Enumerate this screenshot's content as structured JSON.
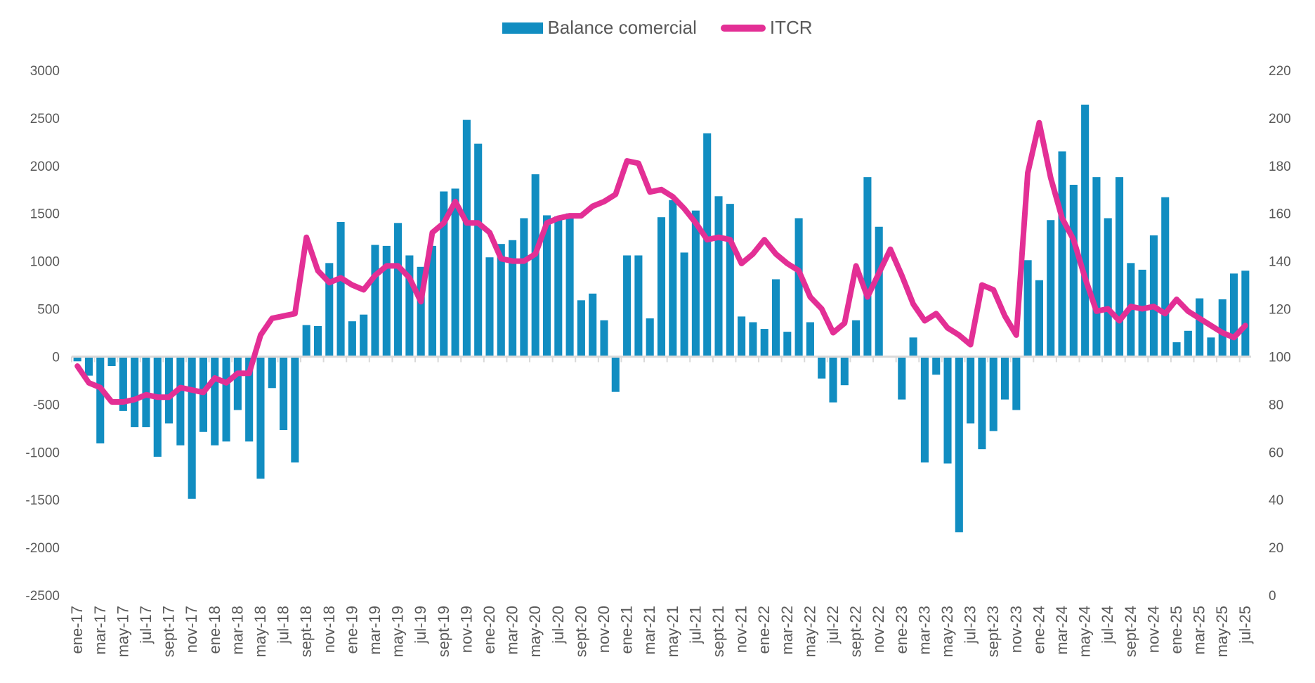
{
  "colors": {
    "bar": "#118DC1",
    "line": "#E32F95",
    "axis": "#D9D9D9",
    "text": "#595959"
  },
  "chart_data": {
    "type": "bar+line",
    "title": "",
    "legend_position": "top-center",
    "legend": [
      {
        "name": "Balance comercial",
        "kind": "bar"
      },
      {
        "name": "ITCR",
        "kind": "line"
      }
    ],
    "y_left": {
      "min": -2500,
      "max": 3000,
      "ticks": [
        3000,
        2500,
        2000,
        1500,
        1000,
        500,
        0,
        -500,
        -1000,
        -1500,
        -2000,
        -2500
      ]
    },
    "y_right": {
      "min": 0,
      "max": 220,
      "ticks": [
        220,
        200,
        180,
        160,
        140,
        120,
        100,
        80,
        60,
        40,
        20,
        0
      ]
    },
    "x_labels_every": 2,
    "categories": [
      "ene-17",
      "feb-17",
      "mar-17",
      "abr-17",
      "may-17",
      "jun-17",
      "jul-17",
      "ago-17",
      "sept-17",
      "oct-17",
      "nov-17",
      "dic-17",
      "ene-18",
      "feb-18",
      "mar-18",
      "abr-18",
      "may-18",
      "jun-18",
      "jul-18",
      "ago-18",
      "sept-18",
      "oct-18",
      "nov-18",
      "dic-18",
      "ene-19",
      "feb-19",
      "mar-19",
      "abr-19",
      "may-19",
      "jun-19",
      "jul-19",
      "ago-19",
      "sept-19",
      "oct-19",
      "nov-19",
      "dic-19",
      "ene-20",
      "feb-20",
      "mar-20",
      "abr-20",
      "may-20",
      "jun-20",
      "jul-20",
      "ago-20",
      "sept-20",
      "oct-20",
      "nov-20",
      "dic-20",
      "ene-21",
      "feb-21",
      "mar-21",
      "abr-21",
      "may-21",
      "jun-21",
      "jul-21",
      "ago-21",
      "sept-21",
      "oct-21",
      "nov-21",
      "dic-21",
      "ene-22",
      "feb-22",
      "mar-22",
      "abr-22",
      "may-22",
      "jun-22",
      "jul-22",
      "ago-22",
      "sept-22",
      "oct-22",
      "nov-22",
      "dic-22",
      "ene-23",
      "feb-23",
      "mar-23",
      "abr-23",
      "may-23",
      "jun-23",
      "jul-23",
      "ago-23",
      "sept-23",
      "oct-23",
      "nov-23",
      "dic-23",
      "ene-24",
      "feb-24",
      "mar-24",
      "abr-24",
      "may-24",
      "jun-24",
      "jul-24",
      "ago-24",
      "sept-24",
      "oct-24",
      "nov-24",
      "dic-24",
      "ene-25",
      "feb-25",
      "mar-25",
      "abr-25",
      "may-25",
      "jun-25",
      "jul-25"
    ],
    "series": [
      {
        "name": "Balance comercial",
        "type": "bar",
        "axis": "left",
        "values": [
          -50,
          -200,
          -910,
          -100,
          -570,
          -740,
          -740,
          -1050,
          -700,
          -930,
          -1490,
          -790,
          -930,
          -890,
          -560,
          -890,
          -1280,
          -330,
          -770,
          -1110,
          330,
          320,
          980,
          1410,
          370,
          440,
          1170,
          1160,
          1400,
          1060,
          940,
          1160,
          1730,
          1760,
          2480,
          2230,
          1040,
          1180,
          1220,
          1450,
          1910,
          1480,
          1470,
          1500,
          590,
          660,
          380,
          -370,
          1060,
          1060,
          400,
          1460,
          1640,
          1090,
          1530,
          2340,
          1680,
          1600,
          420,
          360,
          290,
          810,
          260,
          1450,
          360,
          -230,
          -480,
          -300,
          380,
          1880,
          1360,
          0,
          -450,
          200,
          -1110,
          -190,
          -1120,
          -1840,
          -700,
          -970,
          -780,
          -450,
          -560,
          1010,
          800,
          1430,
          2150,
          1800,
          2640,
          1880,
          1450,
          1880,
          980,
          910,
          1270,
          1670,
          150,
          270,
          610,
          200,
          600,
          870,
          900
        ]
      },
      {
        "name": "ITCR",
        "type": "line",
        "axis": "right",
        "values": [
          96,
          89,
          87,
          81,
          81,
          82,
          84,
          83,
          83,
          87,
          86,
          85,
          91,
          89,
          93,
          93,
          109,
          116,
          117,
          118,
          150,
          136,
          131,
          133,
          130,
          128,
          134,
          138,
          138,
          133,
          123,
          152,
          156,
          165,
          156,
          156,
          152,
          141,
          140,
          140,
          143,
          156,
          158,
          159,
          159,
          163,
          165,
          168,
          182,
          181,
          169,
          170,
          167,
          162,
          156,
          149,
          150,
          149,
          139,
          143,
          149,
          143,
          139,
          136,
          125,
          120,
          110,
          114,
          138,
          125,
          135,
          145,
          134,
          122,
          115,
          118,
          112,
          109,
          105,
          130,
          128,
          117,
          109,
          177,
          198,
          175,
          158,
          149,
          133,
          119,
          120,
          115,
          121,
          120,
          121,
          118,
          124,
          119,
          116,
          113,
          110,
          108,
          113
        ]
      }
    ]
  }
}
